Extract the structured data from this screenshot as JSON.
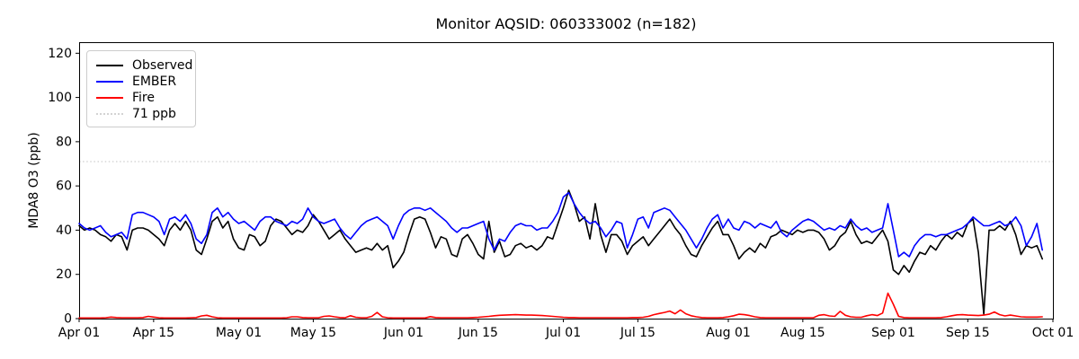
{
  "window": {
    "background": "#ffffff"
  },
  "chart_data": {
    "type": "line",
    "title": "Monitor AQSID: 060333002 (n=182)",
    "xlabel": "",
    "ylabel": "MDA8 O3 (ppb)",
    "ylim": [
      0,
      125
    ],
    "y_ticks": [
      0,
      20,
      40,
      60,
      80,
      100,
      120
    ],
    "x_total_days": 183,
    "x_tick_labels": [
      "Apr 01",
      "Apr 15",
      "May 01",
      "May 15",
      "Jun 01",
      "Jun 15",
      "Jul 01",
      "Jul 15",
      "Aug 01",
      "Aug 15",
      "Sep 01",
      "Sep 15",
      "Oct 01"
    ],
    "x_tick_days": [
      0,
      14,
      30,
      44,
      61,
      75,
      91,
      105,
      122,
      136,
      153,
      167,
      183
    ],
    "grid": false,
    "legend_position": "upper left",
    "axis_color": "#000000",
    "reference_line": {
      "value": 71,
      "label": "71 ppb",
      "color": "#d3d3d3",
      "style": "dotted"
    },
    "series": [
      {
        "name": "Observed",
        "color": "#000000",
        "values": [
          42,
          40,
          41,
          40,
          38,
          37,
          35,
          38,
          37,
          31,
          40,
          41,
          41,
          40,
          38,
          36,
          33,
          40,
          43,
          40,
          44,
          40,
          31,
          29,
          36,
          44,
          46,
          41,
          44,
          36,
          32,
          31,
          38,
          37,
          33,
          35,
          42,
          45,
          44,
          41,
          38,
          40,
          39,
          42,
          47,
          44,
          40,
          36,
          38,
          40,
          36,
          33,
          30,
          31,
          32,
          31,
          34,
          31,
          33,
          23,
          26,
          30,
          38,
          45,
          46,
          45,
          39,
          32,
          37,
          36,
          29,
          28,
          36,
          38,
          34,
          29,
          27,
          44,
          30,
          35,
          28,
          29,
          33,
          34,
          32,
          33,
          31,
          33,
          37,
          36,
          43,
          50,
          58,
          52,
          44,
          46,
          36,
          52,
          38,
          30,
          38,
          38,
          35,
          29,
          33,
          35,
          37,
          33,
          36,
          39,
          42,
          45,
          41,
          38,
          33,
          29,
          28,
          33,
          37,
          41,
          44,
          38,
          38,
          33,
          27,
          30,
          32,
          30,
          34,
          32,
          37,
          38,
          40,
          39,
          38,
          40,
          39,
          40,
          40,
          39,
          36,
          31,
          33,
          37,
          39,
          44,
          38,
          34,
          35,
          34,
          37,
          40,
          35,
          22,
          20,
          24,
          21,
          26,
          30,
          29,
          33,
          31,
          35,
          38,
          36,
          39,
          37,
          43,
          45,
          30,
          2,
          40,
          40,
          42,
          40,
          44,
          38,
          29,
          33,
          32,
          33,
          27
        ]
      },
      {
        "name": "EMBER",
        "color": "#0000ff",
        "values": [
          43,
          41,
          40,
          41,
          42,
          39,
          37,
          38,
          39,
          36,
          47,
          48,
          48,
          47,
          46,
          44,
          38,
          45,
          46,
          44,
          47,
          43,
          36,
          34,
          38,
          48,
          50,
          46,
          48,
          45,
          43,
          44,
          42,
          40,
          44,
          46,
          46,
          44,
          43,
          42,
          44,
          43,
          45,
          50,
          46,
          44,
          43,
          44,
          45,
          41,
          38,
          36,
          39,
          42,
          44,
          45,
          46,
          44,
          42,
          36,
          42,
          47,
          49,
          50,
          50,
          49,
          50,
          48,
          46,
          44,
          41,
          39,
          41,
          41,
          42,
          43,
          44,
          36,
          31,
          36,
          35,
          39,
          42,
          43,
          42,
          42,
          40,
          41,
          41,
          44,
          48,
          55,
          57,
          52,
          48,
          45,
          43,
          44,
          41,
          37,
          40,
          44,
          43,
          32,
          38,
          45,
          46,
          41,
          48,
          49,
          50,
          49,
          46,
          43,
          40,
          36,
          32,
          36,
          41,
          45,
          47,
          41,
          45,
          41,
          40,
          44,
          43,
          41,
          43,
          42,
          41,
          44,
          39,
          37,
          40,
          42,
          44,
          45,
          44,
          42,
          40,
          41,
          40,
          42,
          41,
          45,
          42,
          40,
          41,
          39,
          40,
          41,
          52,
          40,
          28,
          30,
          28,
          33,
          36,
          38,
          38,
          37,
          38,
          38,
          39,
          40,
          41,
          43,
          46,
          44,
          42,
          42,
          43,
          44,
          42,
          43,
          46,
          42,
          33,
          37,
          43,
          31
        ]
      },
      {
        "name": "Fire",
        "color": "#ff0000",
        "values": [
          0.3,
          0.3,
          0.3,
          0.3,
          0.3,
          0.4,
          0.7,
          0.5,
          0.4,
          0.4,
          0.4,
          0.4,
          0.5,
          1.0,
          0.7,
          0.4,
          0.3,
          0.3,
          0.3,
          0.3,
          0.3,
          0.4,
          0.5,
          1.2,
          1.5,
          0.8,
          0.4,
          0.3,
          0.3,
          0.3,
          0.3,
          0.3,
          0.3,
          0.3,
          0.3,
          0.3,
          0.3,
          0.3,
          0.3,
          0.4,
          0.8,
          0.8,
          0.5,
          0.4,
          0.4,
          0.4,
          1.0,
          1.2,
          0.8,
          0.5,
          0.4,
          1.3,
          0.6,
          0.4,
          0.4,
          1.0,
          2.8,
          0.8,
          0.4,
          0.3,
          0.3,
          0.3,
          0.3,
          0.3,
          0.3,
          0.3,
          0.9,
          0.5,
          0.4,
          0.4,
          0.4,
          0.4,
          0.4,
          0.4,
          0.5,
          0.6,
          0.8,
          1.0,
          1.3,
          1.5,
          1.6,
          1.7,
          1.8,
          1.7,
          1.6,
          1.6,
          1.5,
          1.4,
          1.2,
          1.0,
          0.8,
          0.6,
          0.5,
          0.5,
          0.4,
          0.4,
          0.4,
          0.4,
          0.4,
          0.4,
          0.4,
          0.4,
          0.4,
          0.4,
          0.5,
          0.5,
          0.6,
          1.0,
          1.8,
          2.3,
          2.8,
          3.4,
          2.2,
          3.9,
          2.2,
          1.3,
          0.8,
          0.5,
          0.4,
          0.4,
          0.4,
          0.5,
          0.8,
          1.3,
          2.0,
          1.8,
          1.4,
          0.8,
          0.5,
          0.4,
          0.4,
          0.4,
          0.4,
          0.4,
          0.4,
          0.4,
          0.4,
          0.4,
          0.4,
          1.5,
          1.8,
          1.2,
          1.0,
          3.3,
          1.5,
          0.8,
          0.6,
          0.6,
          1.3,
          1.8,
          1.4,
          2.5,
          11.5,
          6.5,
          1.0,
          0.5,
          0.4,
          0.4,
          0.4,
          0.4,
          0.4,
          0.4,
          0.5,
          0.8,
          1.3,
          1.7,
          1.8,
          1.6,
          1.5,
          1.4,
          1.6,
          2.0,
          3.0,
          1.8,
          1.2,
          1.6,
          1.2,
          0.8,
          0.7,
          0.7,
          0.7,
          0.8
        ]
      }
    ]
  }
}
